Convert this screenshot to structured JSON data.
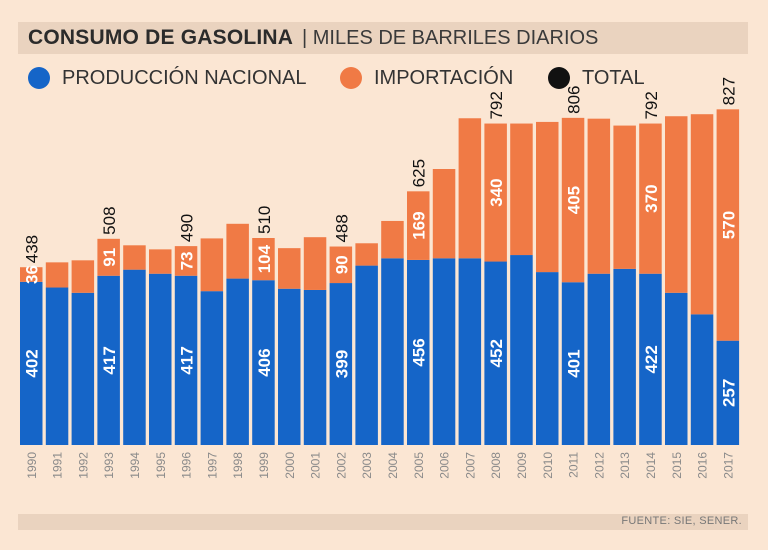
{
  "header": {
    "title": "CONSUMO DE GASOLINA",
    "separator": "|",
    "subtitle": "MILES DE BARRILES DIARIOS"
  },
  "legend": [
    {
      "label": "PRODUCCIÓN NACIONAL",
      "color": "#1565c8"
    },
    {
      "label": "IMPORTACIÓN",
      "color": "#f07a45"
    },
    {
      "label": "TOTAL",
      "color": "#111111"
    }
  ],
  "source": "FUENTE: SIE, SENER.",
  "chart_data": {
    "type": "bar",
    "stacked": true,
    "title": "CONSUMO DE GASOLINA",
    "ylabel": "MILES DE BARRILES DIARIOS",
    "ylim": [
      0,
      850
    ],
    "categories": [
      "1990",
      "1991",
      "1992",
      "1993",
      "1994",
      "1995",
      "1996",
      "1997",
      "1998",
      "1999",
      "2000",
      "2001",
      "2002",
      "2003",
      "2004",
      "2005",
      "2006",
      "2007",
      "2008",
      "2009",
      "2010",
      "2011",
      "2012",
      "2013",
      "2014",
      "2015",
      "2016",
      "2017"
    ],
    "series": [
      {
        "name": "PRODUCCIÓN NACIONAL",
        "color": "#1565c8",
        "values": [
          402,
          388,
          375,
          417,
          432,
          422,
          417,
          379,
          410,
          406,
          385,
          382,
          399,
          442,
          460,
          456,
          460,
          460,
          452,
          468,
          426,
          401,
          422,
          434,
          422,
          375,
          322,
          257
        ],
        "labels": [
          "402",
          null,
          null,
          "417",
          null,
          null,
          "417",
          null,
          null,
          "406",
          null,
          null,
          "399",
          null,
          null,
          "456",
          null,
          null,
          "452",
          null,
          null,
          "401",
          null,
          null,
          "422",
          null,
          null,
          "257"
        ]
      },
      {
        "name": "IMPORTACIÓN",
        "color": "#f07a45",
        "values": [
          36,
          62,
          80,
          91,
          60,
          60,
          73,
          130,
          135,
          104,
          100,
          130,
          90,
          55,
          92,
          169,
          220,
          345,
          340,
          324,
          370,
          405,
          382,
          353,
          370,
          435,
          493,
          570
        ],
        "labels": [
          "36",
          null,
          null,
          "91",
          null,
          null,
          "73",
          null,
          null,
          "104",
          null,
          null,
          "90",
          null,
          null,
          "169",
          null,
          null,
          "340",
          null,
          null,
          "405",
          null,
          null,
          "370",
          null,
          null,
          "570"
        ]
      }
    ],
    "totals": [
      438,
      null,
      null,
      508,
      null,
      null,
      490,
      null,
      null,
      510,
      null,
      null,
      488,
      null,
      null,
      625,
      null,
      null,
      792,
      null,
      null,
      806,
      null,
      null,
      792,
      null,
      null,
      827
    ]
  }
}
